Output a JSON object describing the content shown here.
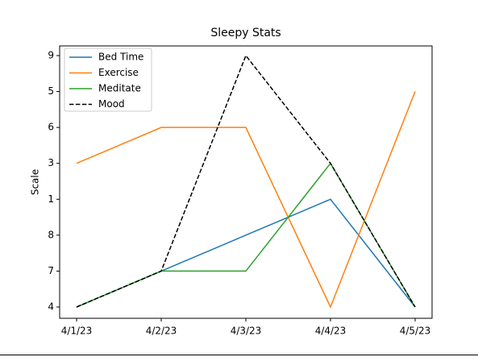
{
  "chart_data": {
    "type": "line",
    "title": "Sleepy Stats",
    "ylabel": "Scale",
    "categories": [
      "4/1/23",
      "4/2/23",
      "4/3/23",
      "4/4/23",
      "4/5/23"
    ],
    "ycategories": [
      "4",
      "7",
      "8",
      "1",
      "3",
      "6",
      "5",
      "9"
    ],
    "legend": "upper left",
    "series": [
      {
        "name": "Bed Time",
        "color": "#1f77b4",
        "style": "solid",
        "values": [
          "4",
          "7",
          "8",
          "1",
          "4"
        ]
      },
      {
        "name": "Exercise",
        "color": "#ff7f0e",
        "style": "solid",
        "values": [
          "3",
          "6",
          "6",
          "4",
          "5"
        ]
      },
      {
        "name": "Meditate",
        "color": "#2ca02c",
        "style": "solid",
        "values": [
          "4",
          "7",
          "7",
          "3",
          "4"
        ]
      },
      {
        "name": "Mood",
        "color": "#000000",
        "style": "dashed",
        "values": [
          "4",
          "7",
          "9",
          "3",
          "4"
        ]
      }
    ]
  }
}
